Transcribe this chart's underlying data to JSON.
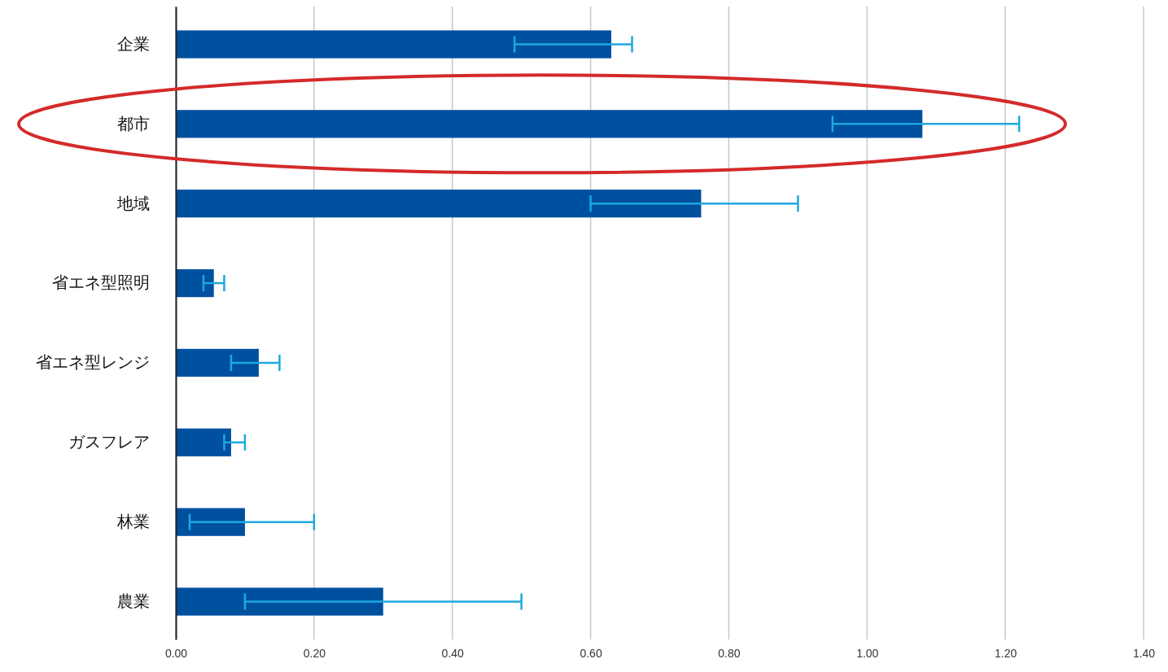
{
  "chart_data": {
    "type": "bar",
    "orientation": "horizontal",
    "categories": [
      "企業",
      "都市",
      "地域",
      "省エネ型照明",
      "省エネ型レンジ",
      "ガスフレア",
      "林業",
      "農業"
    ],
    "values": [
      0.63,
      1.08,
      0.76,
      0.055,
      0.12,
      0.08,
      0.1,
      0.3
    ],
    "errors": [
      [
        0.49,
        0.66
      ],
      [
        0.95,
        1.22
      ],
      [
        0.6,
        0.9
      ],
      [
        0.04,
        0.07
      ],
      [
        0.08,
        0.15
      ],
      [
        0.07,
        0.1
      ],
      [
        0.02,
        0.2
      ],
      [
        0.1,
        0.5
      ]
    ],
    "color": "#0050a0",
    "xlim": [
      0,
      1.4
    ],
    "xticks": [
      {
        "value": 0,
        "label": "0.00"
      },
      {
        "value": 0.2,
        "label": "0.20"
      },
      {
        "value": 0.4,
        "label": "0.40"
      },
      {
        "value": 0.6,
        "label": "0.60"
      },
      {
        "value": 0.8,
        "label": "0.80"
      },
      {
        "value": 1.0,
        "label": "1.00"
      },
      {
        "value": 1.2,
        "label": "1.20"
      },
      {
        "value": 1.4,
        "label": "1.40"
      }
    ],
    "grid": "x"
  }
}
